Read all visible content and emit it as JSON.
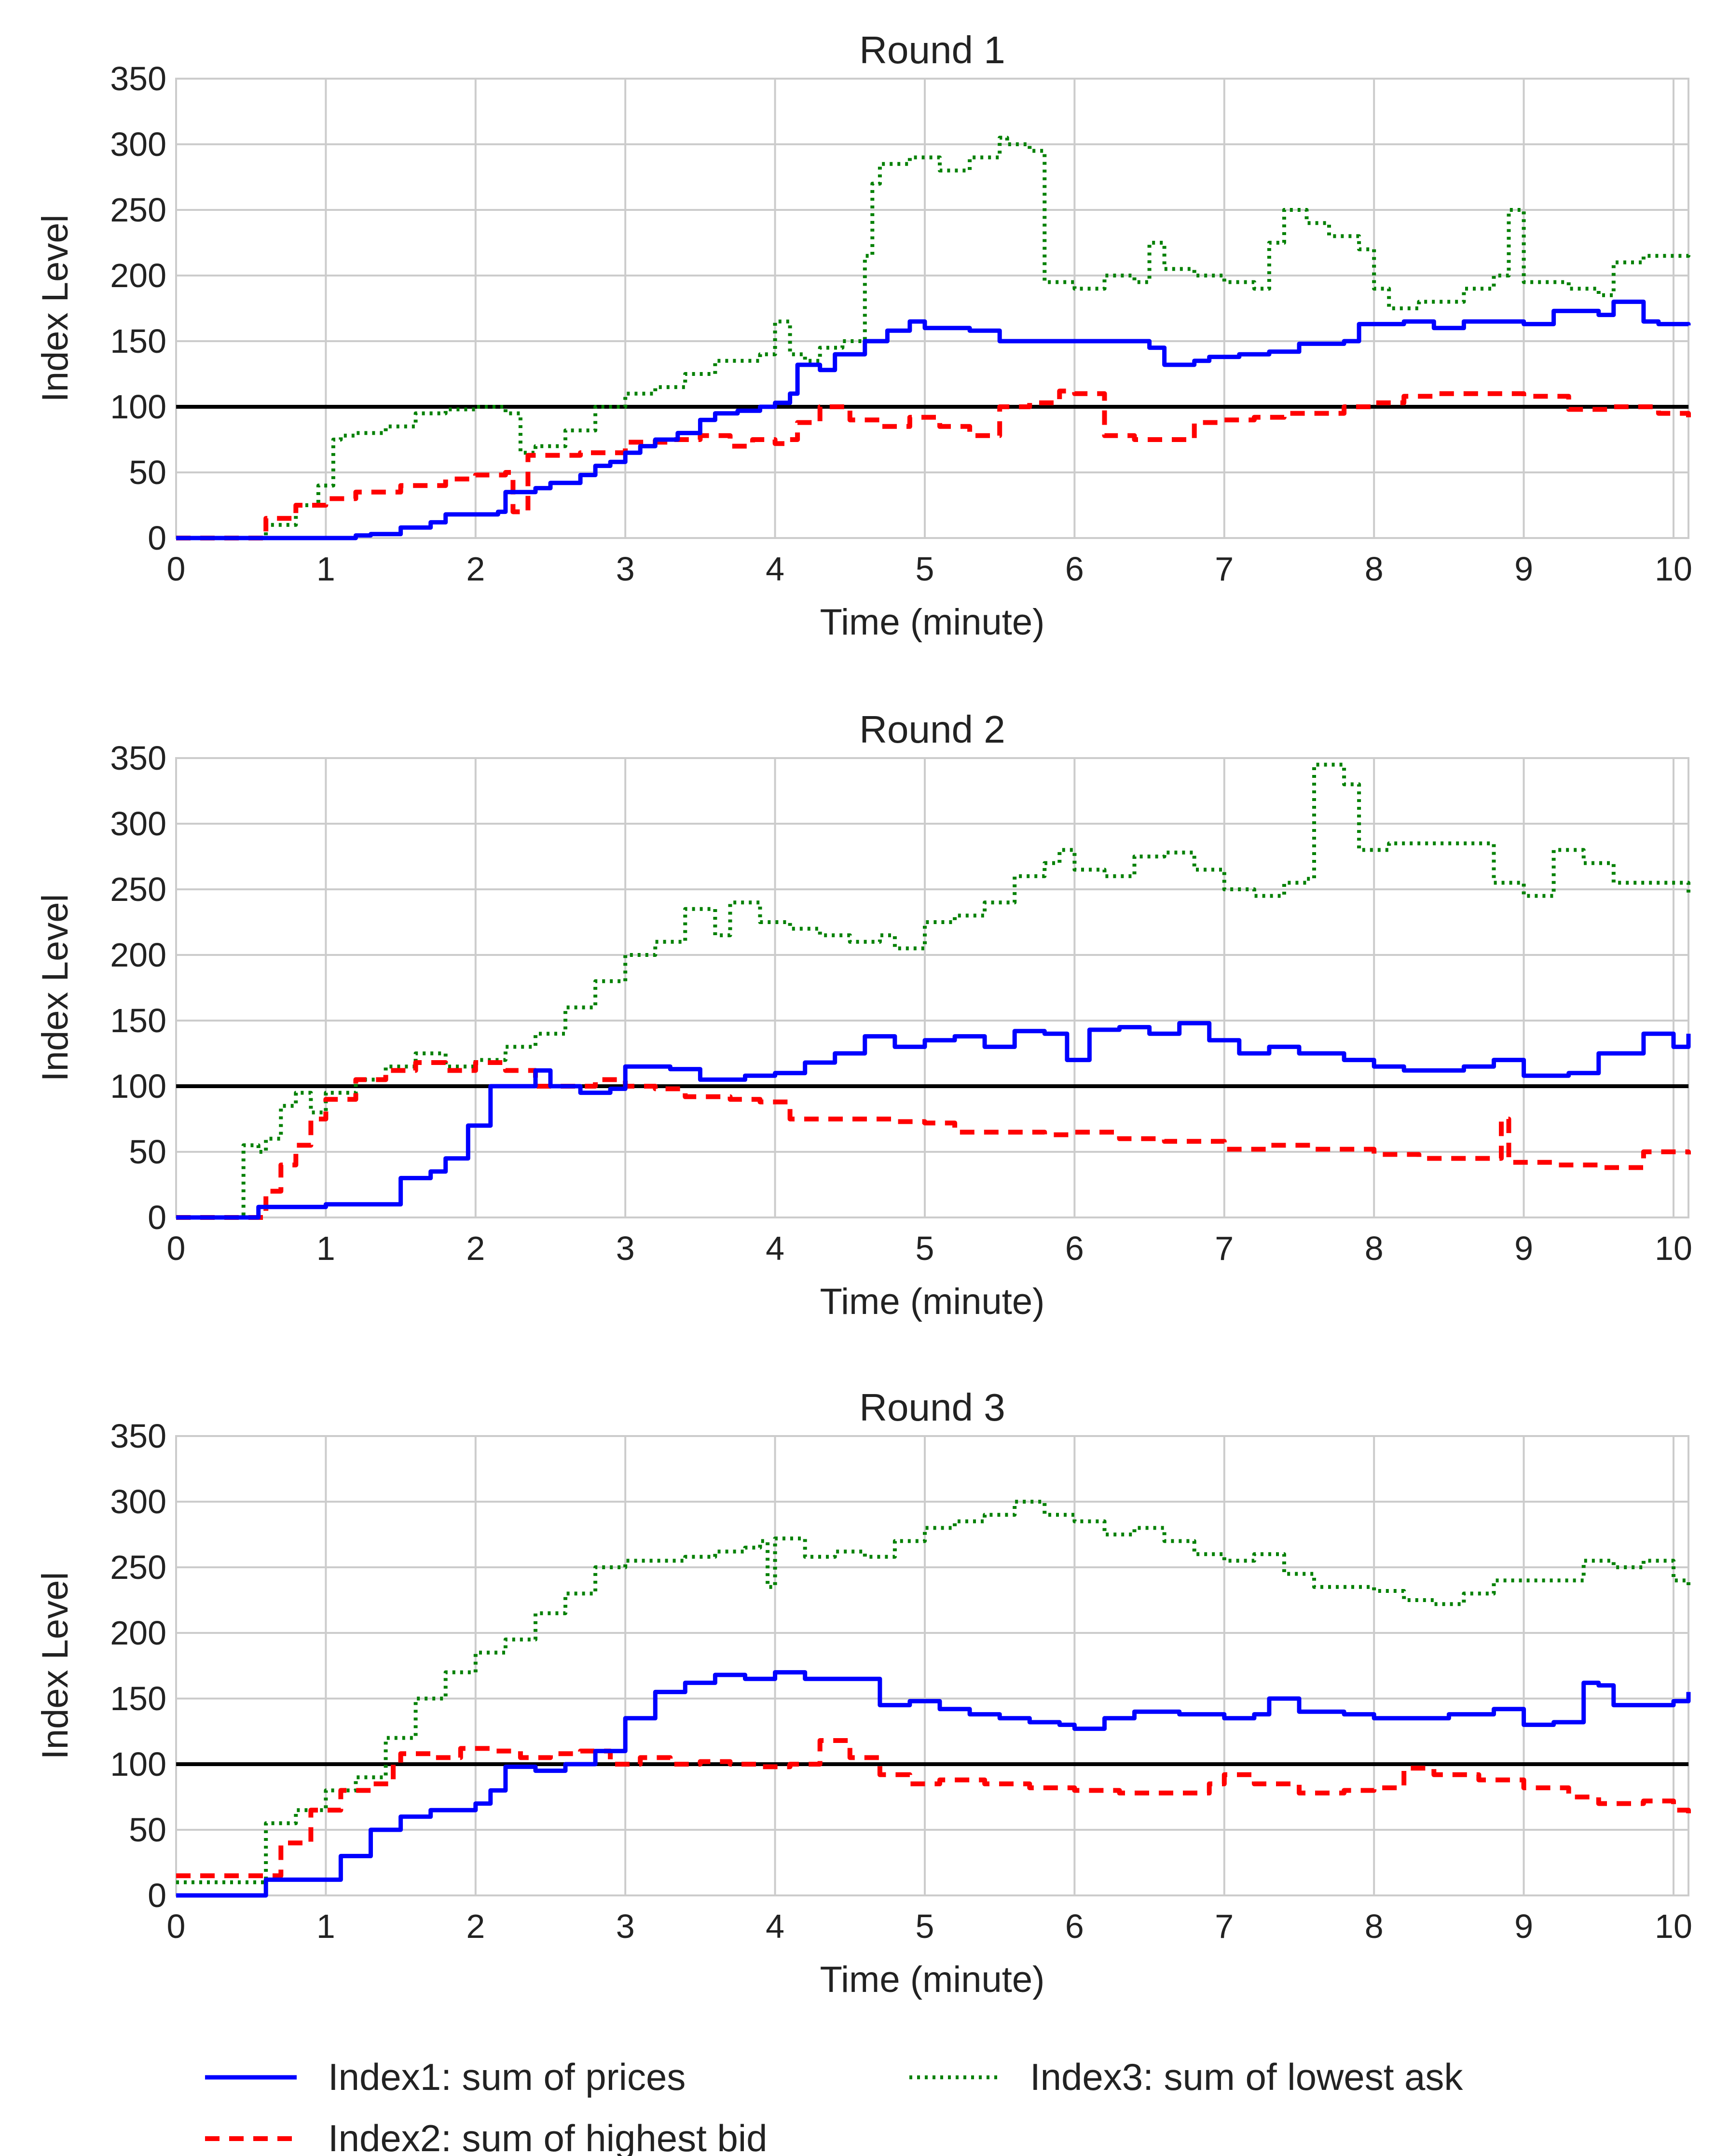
{
  "chart_data": [
    {
      "type": "line",
      "title": "Round 1",
      "xlabel": "Time (minute)",
      "ylabel": "Index Level",
      "xlim": [
        0,
        10.1
      ],
      "ylim": [
        0,
        350
      ],
      "xticks": [
        0,
        1,
        2,
        3,
        4,
        5,
        6,
        7,
        8,
        9,
        10
      ],
      "yticks": [
        0,
        50,
        100,
        150,
        200,
        250,
        300,
        350
      ],
      "grid": true,
      "reference_line": 100,
      "series": [
        {
          "name": "Index1: sum of prices",
          "color": "#0000ff",
          "style": "solid",
          "x": [
            0,
            0.5,
            1.0,
            1.2,
            1.3,
            1.5,
            1.7,
            1.8,
            2.0,
            2.15,
            2.2,
            2.4,
            2.5,
            2.7,
            2.8,
            2.9,
            3.0,
            3.1,
            3.2,
            3.35,
            3.5,
            3.6,
            3.75,
            3.9,
            4.0,
            4.1,
            4.15,
            4.3,
            4.4,
            4.6,
            4.75,
            4.9,
            5.0,
            5.3,
            5.5,
            5.8,
            6.0,
            6.5,
            6.6,
            6.8,
            6.9,
            7.1,
            7.3,
            7.5,
            7.8,
            7.9,
            8.0,
            8.2,
            8.4,
            8.6,
            8.8,
            9.0,
            9.2,
            9.5,
            9.6,
            9.8,
            9.9,
            10.1
          ],
          "y": [
            0,
            0,
            0,
            2,
            3,
            8,
            12,
            18,
            18,
            20,
            35,
            38,
            42,
            48,
            55,
            58,
            65,
            70,
            75,
            80,
            90,
            95,
            97,
            100,
            103,
            110,
            132,
            128,
            140,
            150,
            158,
            165,
            160,
            158,
            150,
            150,
            150,
            145,
            132,
            135,
            138,
            140,
            142,
            148,
            150,
            163,
            163,
            165,
            160,
            165,
            165,
            163,
            173,
            170,
            180,
            165,
            163,
            162
          ]
        },
        {
          "name": "Index2: sum of highest bid",
          "color": "#ff0000",
          "style": "dashed",
          "x": [
            0,
            0.5,
            0.6,
            0.8,
            1.0,
            1.2,
            1.5,
            1.8,
            2.0,
            2.2,
            2.25,
            2.35,
            2.5,
            2.7,
            3.0,
            3.3,
            3.5,
            3.7,
            3.85,
            4.0,
            4.1,
            4.15,
            4.3,
            4.5,
            4.7,
            4.9,
            5.1,
            5.3,
            5.5,
            5.7,
            5.9,
            6.0,
            6.2,
            6.4,
            6.8,
            7.0,
            7.2,
            7.4,
            7.8,
            8.0,
            8.2,
            8.4,
            8.7,
            9.0,
            9.3,
            9.6,
            9.9,
            10.1
          ],
          "y": [
            0,
            0,
            15,
            25,
            30,
            35,
            40,
            45,
            48,
            50,
            20,
            63,
            63,
            65,
            73,
            75,
            78,
            70,
            75,
            72,
            75,
            88,
            100,
            90,
            85,
            92,
            85,
            78,
            100,
            103,
            112,
            110,
            78,
            75,
            88,
            90,
            92,
            95,
            100,
            103,
            108,
            110,
            110,
            108,
            98,
            100,
            95,
            92
          ]
        },
        {
          "name": "Index3: sum of lowest ask",
          "color": "#008000",
          "style": "dotted",
          "x": [
            0,
            0.45,
            0.6,
            0.8,
            0.95,
            1.05,
            1.1,
            1.2,
            1.4,
            1.6,
            1.8,
            2.0,
            2.2,
            2.3,
            2.4,
            2.6,
            2.8,
            3.0,
            3.2,
            3.4,
            3.6,
            3.9,
            4.0,
            4.1,
            4.2,
            4.3,
            4.45,
            4.6,
            4.65,
            4.7,
            4.9,
            5.1,
            5.3,
            5.5,
            5.55,
            5.7,
            5.8,
            6.0,
            6.2,
            6.4,
            6.5,
            6.6,
            6.8,
            7.0,
            7.2,
            7.3,
            7.4,
            7.55,
            7.7,
            7.9,
            8.0,
            8.1,
            8.3,
            8.6,
            8.8,
            8.9,
            9.0,
            9.3,
            9.5,
            9.6,
            9.8,
            10.1
          ],
          "y": [
            0,
            0,
            10,
            25,
            40,
            75,
            78,
            80,
            85,
            95,
            98,
            100,
            95,
            65,
            70,
            82,
            100,
            110,
            115,
            125,
            135,
            140,
            165,
            140,
            135,
            145,
            150,
            215,
            270,
            285,
            290,
            280,
            290,
            305,
            300,
            295,
            195,
            190,
            200,
            195,
            225,
            205,
            200,
            195,
            190,
            225,
            250,
            240,
            230,
            220,
            190,
            175,
            180,
            190,
            200,
            250,
            195,
            190,
            185,
            210,
            215,
            217
          ]
        }
      ]
    },
    {
      "type": "line",
      "title": "Round 2",
      "xlabel": "Time (minute)",
      "ylabel": "Index Level",
      "xlim": [
        0,
        10.1
      ],
      "ylim": [
        0,
        350
      ],
      "xticks": [
        0,
        1,
        2,
        3,
        4,
        5,
        6,
        7,
        8,
        9,
        10
      ],
      "yticks": [
        0,
        50,
        100,
        150,
        200,
        250,
        300,
        350
      ],
      "grid": true,
      "reference_line": 100,
      "series": [
        {
          "name": "Index1: sum of prices",
          "color": "#0000ff",
          "style": "solid",
          "x": [
            0,
            0.5,
            0.55,
            1.0,
            1.4,
            1.5,
            1.7,
            1.8,
            1.95,
            2.1,
            2.3,
            2.4,
            2.5,
            2.7,
            2.9,
            3.0,
            3.3,
            3.5,
            3.8,
            4.0,
            4.2,
            4.4,
            4.6,
            4.8,
            5.0,
            5.2,
            5.4,
            5.6,
            5.8,
            5.95,
            6.1,
            6.3,
            6.5,
            6.7,
            6.9,
            7.1,
            7.3,
            7.5,
            7.8,
            8.0,
            8.2,
            8.4,
            8.6,
            8.8,
            9.0,
            9.3,
            9.5,
            9.8,
            10.0,
            10.1
          ],
          "y": [
            0,
            0,
            8,
            10,
            10,
            30,
            35,
            45,
            70,
            100,
            100,
            112,
            100,
            95,
            98,
            115,
            113,
            105,
            108,
            110,
            118,
            125,
            138,
            130,
            135,
            138,
            130,
            142,
            140,
            120,
            143,
            145,
            140,
            148,
            135,
            125,
            130,
            125,
            120,
            115,
            112,
            112,
            115,
            120,
            108,
            110,
            125,
            140,
            130,
            140
          ]
        },
        {
          "name": "Index2: sum of highest bid",
          "color": "#ff0000",
          "style": "dashed",
          "x": [
            0,
            0.5,
            0.6,
            0.7,
            0.8,
            0.9,
            1.0,
            1.2,
            1.4,
            1.6,
            1.8,
            2.0,
            2.2,
            2.4,
            2.6,
            2.8,
            3.0,
            3.2,
            3.4,
            3.7,
            3.9,
            4.1,
            4.3,
            4.5,
            4.8,
            5.0,
            5.2,
            5.5,
            5.8,
            6.0,
            6.3,
            6.6,
            7.0,
            7.3,
            7.6,
            8.0,
            8.3,
            8.6,
            8.85,
            8.9,
            9.2,
            9.5,
            9.8,
            10.1
          ],
          "y": [
            0,
            0,
            20,
            40,
            55,
            75,
            90,
            105,
            112,
            118,
            112,
            118,
            112,
            100,
            100,
            105,
            100,
            98,
            92,
            90,
            88,
            75,
            75,
            75,
            73,
            72,
            65,
            65,
            63,
            65,
            60,
            58,
            52,
            55,
            52,
            48,
            45,
            45,
            75,
            42,
            40,
            38,
            50,
            48
          ]
        },
        {
          "name": "Index3: sum of lowest ask",
          "color": "#008000",
          "style": "dotted",
          "x": [
            0,
            0.4,
            0.45,
            0.55,
            0.6,
            0.7,
            0.8,
            0.9,
            1.0,
            1.2,
            1.4,
            1.6,
            1.8,
            2.0,
            2.2,
            2.4,
            2.6,
            2.8,
            3.0,
            3.2,
            3.4,
            3.6,
            3.7,
            3.9,
            4.1,
            4.3,
            4.5,
            4.7,
            4.8,
            5.0,
            5.2,
            5.4,
            5.6,
            5.8,
            5.9,
            6.0,
            6.2,
            6.4,
            6.6,
            6.8,
            7.0,
            7.2,
            7.4,
            7.55,
            7.6,
            7.8,
            7.9,
            8.1,
            8.3,
            8.6,
            8.8,
            9.0,
            9.2,
            9.4,
            9.6,
            9.8,
            10.1
          ],
          "y": [
            0,
            0,
            55,
            50,
            60,
            85,
            95,
            80,
            95,
            105,
            115,
            125,
            115,
            120,
            130,
            140,
            160,
            180,
            200,
            210,
            235,
            215,
            240,
            225,
            220,
            215,
            210,
            215,
            205,
            225,
            230,
            240,
            260,
            270,
            280,
            265,
            260,
            275,
            278,
            265,
            250,
            245,
            255,
            258,
            345,
            330,
            280,
            285,
            285,
            285,
            255,
            245,
            280,
            270,
            255,
            255,
            245
          ]
        }
      ]
    },
    {
      "type": "line",
      "title": "Round 3",
      "xlabel": "Time (minute)",
      "ylabel": "Index Level",
      "xlim": [
        0,
        10.1
      ],
      "ylim": [
        0,
        350
      ],
      "xticks": [
        0,
        1,
        2,
        3,
        4,
        5,
        6,
        7,
        8,
        9,
        10
      ],
      "yticks": [
        0,
        50,
        100,
        150,
        200,
        250,
        300,
        350
      ],
      "grid": true,
      "reference_line": 100,
      "series": [
        {
          "name": "Index1: sum of prices",
          "color": "#0000ff",
          "style": "solid",
          "x": [
            0,
            0.5,
            0.6,
            0.9,
            1.1,
            1.3,
            1.5,
            1.7,
            2.0,
            2.1,
            2.2,
            2.4,
            2.6,
            2.8,
            3.0,
            3.2,
            3.4,
            3.6,
            3.8,
            4.0,
            4.2,
            4.5,
            4.7,
            4.9,
            5.1,
            5.3,
            5.5,
            5.7,
            5.9,
            6.0,
            6.2,
            6.4,
            6.7,
            7.0,
            7.2,
            7.3,
            7.5,
            7.8,
            8.0,
            8.2,
            8.5,
            8.8,
            9.0,
            9.2,
            9.4,
            9.5,
            9.6,
            9.8,
            10.0,
            10.1
          ],
          "y": [
            0,
            0,
            12,
            12,
            30,
            50,
            60,
            65,
            70,
            80,
            98,
            95,
            100,
            110,
            135,
            155,
            162,
            168,
            165,
            170,
            165,
            165,
            145,
            148,
            142,
            138,
            135,
            132,
            130,
            127,
            135,
            140,
            138,
            135,
            138,
            150,
            140,
            138,
            135,
            135,
            138,
            142,
            130,
            132,
            162,
            160,
            145,
            145,
            148,
            155
          ]
        },
        {
          "name": "Index2: sum of highest bid",
          "color": "#ff0000",
          "style": "dashed",
          "x": [
            0,
            0.55,
            0.7,
            0.9,
            1.1,
            1.3,
            1.45,
            1.5,
            1.7,
            1.9,
            2.1,
            2.3,
            2.5,
            2.7,
            2.9,
            3.1,
            3.3,
            3.5,
            3.7,
            3.9,
            4.1,
            4.3,
            4.5,
            4.7,
            4.9,
            5.1,
            5.4,
            5.7,
            6.0,
            6.3,
            6.6,
            6.9,
            7.0,
            7.2,
            7.5,
            7.8,
            8.0,
            8.2,
            8.4,
            8.7,
            9.0,
            9.3,
            9.5,
            9.8,
            10.0,
            10.1
          ],
          "y": [
            15,
            15,
            40,
            65,
            80,
            85,
            100,
            108,
            105,
            112,
            110,
            105,
            108,
            110,
            100,
            105,
            100,
            102,
            100,
            98,
            100,
            118,
            105,
            92,
            85,
            88,
            85,
            82,
            80,
            78,
            78,
            85,
            92,
            85,
            78,
            80,
            82,
            97,
            92,
            88,
            82,
            75,
            70,
            72,
            65,
            60
          ]
        },
        {
          "name": "Index3: sum of lowest ask",
          "color": "#008000",
          "style": "dotted",
          "x": [
            0,
            0.5,
            0.6,
            0.8,
            1.0,
            1.2,
            1.4,
            1.6,
            1.8,
            2.0,
            2.2,
            2.4,
            2.6,
            2.8,
            3.0,
            3.2,
            3.4,
            3.6,
            3.8,
            3.9,
            3.95,
            4.0,
            4.2,
            4.4,
            4.6,
            4.8,
            5.0,
            5.2,
            5.4,
            5.6,
            5.8,
            6.0,
            6.2,
            6.4,
            6.6,
            6.8,
            7.0,
            7.2,
            7.4,
            7.6,
            7.8,
            8.0,
            8.2,
            8.4,
            8.6,
            8.8,
            9.0,
            9.2,
            9.4,
            9.6,
            9.8,
            10.0,
            10.1
          ],
          "y": [
            10,
            10,
            55,
            65,
            80,
            90,
            120,
            150,
            170,
            185,
            195,
            215,
            230,
            250,
            255,
            255,
            258,
            262,
            265,
            270,
            235,
            272,
            258,
            262,
            258,
            270,
            280,
            285,
            290,
            300,
            290,
            285,
            275,
            280,
            270,
            260,
            255,
            260,
            245,
            235,
            235,
            232,
            225,
            222,
            230,
            240,
            240,
            240,
            255,
            250,
            255,
            240,
            235
          ]
        }
      ]
    }
  ],
  "legend": {
    "items": [
      {
        "label": "Index1: sum of prices",
        "color": "#0000ff",
        "style": "solid"
      },
      {
        "label": "Index2: sum of highest bid",
        "color": "#ff0000",
        "style": "dashed"
      },
      {
        "label": "Index3: sum of lowest ask",
        "color": "#008000",
        "style": "dotted"
      }
    ]
  }
}
